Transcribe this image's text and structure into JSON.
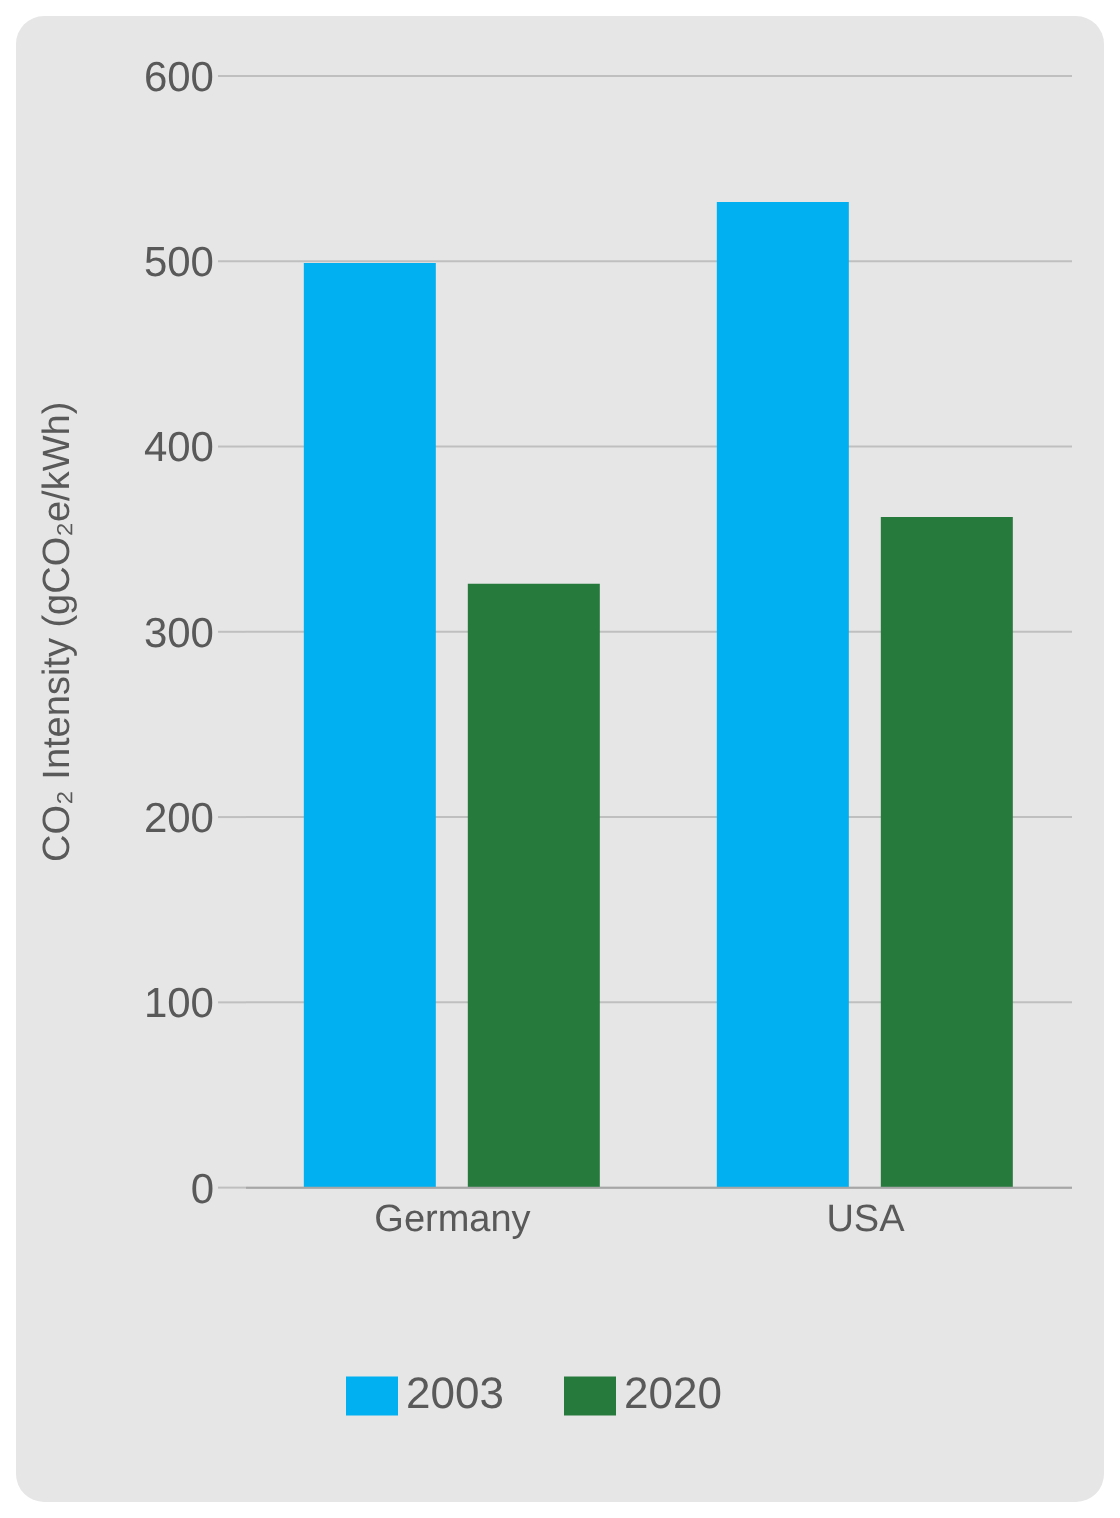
{
  "chart_data": {
    "type": "bar",
    "ylabel": "CO₂ Intensity (gCO₂e/kWh)",
    "categories": [
      "Germany",
      "USA"
    ],
    "series": [
      {
        "name": "2003",
        "color": "#00b0f0",
        "values": [
          499,
          532
        ]
      },
      {
        "name": "2020",
        "color": "#267a3c",
        "values": [
          326,
          362
        ]
      }
    ],
    "ylim": [
      0,
      600
    ],
    "yticks": [
      0,
      100,
      200,
      300,
      400,
      500,
      600
    ],
    "grid": "y",
    "legend": "bottom"
  }
}
